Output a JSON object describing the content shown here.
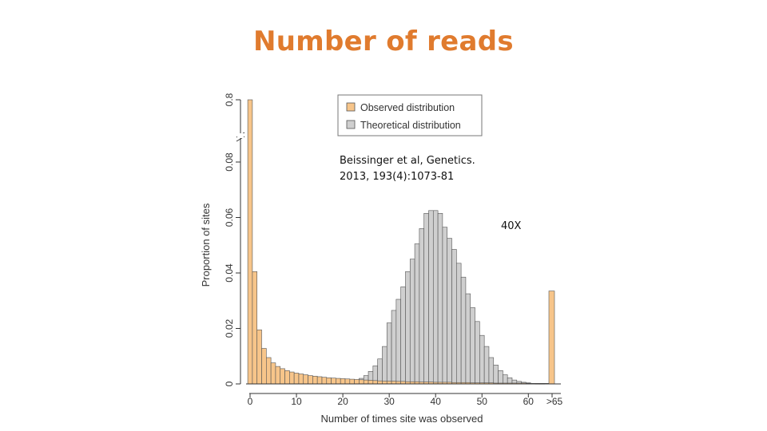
{
  "slide": {
    "title": "Number of reads",
    "citation_line1": "Beissinger et al, Genetics.",
    "citation_line2": "2013, 193(4):1073-81",
    "coverage_label": "40X"
  },
  "chart_data": {
    "type": "bar",
    "xlabel": "Number of times site was observed",
    "ylabel": "Proportion of sites",
    "xlim": [
      0,
      65
    ],
    "x_ticks": [
      0,
      10,
      20,
      30,
      40,
      50,
      60
    ],
    "x_overflow_label": ">65",
    "y_ticks": [
      "0",
      "0.02",
      "0.04",
      "0.06",
      "0.08",
      "0.8"
    ],
    "y_axis_break": true,
    "legend": [
      "Observed distribution",
      "Theoretical distribution"
    ],
    "legend_position": "top-right",
    "colors": {
      "observed": "#F7C58A",
      "theoretical": "#CFCFCF",
      "bar_edge": "#555555",
      "title": "#E07B2E"
    },
    "series": [
      {
        "name": "Observed distribution",
        "x": [
          0,
          1,
          2,
          3,
          4,
          5,
          6,
          7,
          8,
          9,
          10,
          11,
          12,
          13,
          14,
          15,
          16,
          17,
          18,
          19,
          20,
          21,
          22,
          23,
          24,
          25,
          26,
          27,
          28,
          29,
          30,
          31,
          32,
          33,
          34,
          35,
          36,
          37,
          38,
          39,
          40,
          41,
          42,
          43,
          44,
          45,
          46,
          47,
          48,
          49,
          50,
          51,
          52,
          53,
          54,
          55,
          56,
          57,
          58,
          59,
          60,
          61,
          62,
          63,
          64,
          65
        ],
        "values": [
          0.8,
          0.0405,
          0.0195,
          0.0128,
          0.0095,
          0.0076,
          0.0063,
          0.0055,
          0.0048,
          0.0043,
          0.0039,
          0.0036,
          0.0033,
          0.003,
          0.0028,
          0.0026,
          0.0024,
          0.0022,
          0.0021,
          0.002,
          0.0019,
          0.0018,
          0.0017,
          0.0016,
          0.0015,
          0.0014,
          0.0013,
          0.0012,
          0.0011,
          0.001,
          0.001,
          0.001,
          0.0009,
          0.0009,
          0.0008,
          0.0008,
          0.0008,
          0.0007,
          0.0007,
          0.0007,
          0.0006,
          0.0006,
          0.0006,
          0.0006,
          0.0005,
          0.0005,
          0.0005,
          0.0005,
          0.0004,
          0.0004,
          0.0004,
          0.0004,
          0.0004,
          0.0003,
          0.0003,
          0.0003,
          0.0003,
          0.0003,
          0.0003,
          0.0003,
          0.0002,
          0.0002,
          0.0002,
          0.0002,
          0.0002,
          0.0335
        ]
      },
      {
        "name": "Theoretical distribution",
        "x": [
          22,
          23,
          24,
          25,
          26,
          27,
          28,
          29,
          30,
          31,
          32,
          33,
          34,
          35,
          36,
          37,
          38,
          39,
          40,
          41,
          42,
          43,
          44,
          45,
          46,
          47,
          48,
          49,
          50,
          51,
          52,
          53,
          54,
          55,
          56,
          57,
          58,
          59,
          60,
          61,
          62,
          63
        ],
        "values": [
          0.0007,
          0.0012,
          0.002,
          0.003,
          0.0045,
          0.0065,
          0.009,
          0.0135,
          0.022,
          0.0265,
          0.0305,
          0.035,
          0.0405,
          0.045,
          0.0505,
          0.056,
          0.0615,
          0.0625,
          0.0625,
          0.0615,
          0.0565,
          0.0525,
          0.0485,
          0.0435,
          0.0385,
          0.0325,
          0.0275,
          0.0225,
          0.0175,
          0.0135,
          0.0095,
          0.0068,
          0.0048,
          0.0033,
          0.0022,
          0.0014,
          0.0009,
          0.0006,
          0.0004,
          0.0002,
          0.0001,
          0.0001
        ]
      }
    ]
  }
}
